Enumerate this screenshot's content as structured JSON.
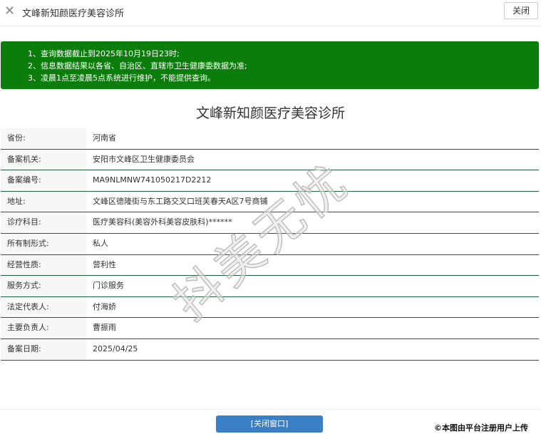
{
  "topbar": {
    "title": "文峰新知颜医疗美容诊所",
    "close_label": "关闭"
  },
  "notice": [
    "1、查询数据截止到2025年10月19日23时;",
    "2、信息数据结果以各省、自治区、直辖市卫生健康委数据为准;",
    "3、凌晨1点至凌晨5点系统进行维护，不能提供查询。"
  ],
  "main_title": "文峰新知颜医疗美容诊所",
  "rows": [
    {
      "label": "省份:",
      "value": "河南省"
    },
    {
      "label": "备案机关:",
      "value": "安阳市文峰区卫生健康委员会"
    },
    {
      "label": "备案编号:",
      "value": "MA9NLMNW741050217D2212"
    },
    {
      "label": "地址:",
      "value": "文峰区德隆街与东工路交叉口班芙春天A区7号商铺"
    },
    {
      "label": "诊疗科目:",
      "value": "医疗美容科(美容外科美容皮肤科)******"
    },
    {
      "label": "所有制形式:",
      "value": "私人"
    },
    {
      "label": "经营性质:",
      "value": "营利性"
    },
    {
      "label": "服务方式:",
      "value": "门诊服务"
    },
    {
      "label": "法定代表人:",
      "value": "付海娇"
    },
    {
      "label": "主要负责人:",
      "value": "曹振雨"
    },
    {
      "label": "备案日期:",
      "value": "2025/04/25"
    }
  ],
  "footer": {
    "close_window_label": "[关闭窗口]",
    "credit": "©本图由平台注册用户上传"
  },
  "watermark": "抖美无忧",
  "colors": {
    "notice_bg": "#0b7d0b",
    "button_bg": "#3a7fc4",
    "row_border": "#1f5f3f"
  }
}
